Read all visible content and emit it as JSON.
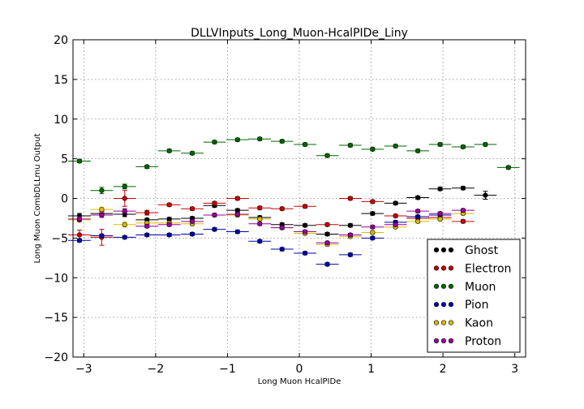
{
  "chart_data": {
    "type": "scatter",
    "title": "DLLVInputs_Long_Muon-HcalPIDe_Liny",
    "xlabel": "Long Muon HcalPIDe",
    "ylabel": "Long Muon CombDLLmu Output",
    "xlim": [
      -3.15,
      3.15
    ],
    "ylim": [
      -20,
      20
    ],
    "x_ticks": [
      -3,
      -2,
      -1,
      0,
      1,
      2,
      3
    ],
    "x_tick_labels": [
      "−3",
      "−2",
      "−1",
      "0",
      "1",
      "2",
      "3"
    ],
    "y_ticks": [
      -20,
      -15,
      -10,
      -5,
      0,
      5,
      10,
      15,
      20
    ],
    "y_tick_labels": [
      "−20",
      "−15",
      "−10",
      "−5",
      "0",
      "5",
      "10",
      "15",
      "20"
    ],
    "grid": true,
    "legend_position": "lower-right",
    "bin_half_width": 0.157,
    "series": [
      {
        "name": "Ghost",
        "color": "#000000",
        "x": [
          -3.06,
          -2.75,
          -2.43,
          -2.12,
          -1.81,
          -1.49,
          -1.18,
          -0.86,
          -0.55,
          -0.24,
          0.08,
          0.39,
          0.71,
          1.02,
          1.34,
          1.65,
          1.96,
          2.28,
          2.59
        ],
        "y": [
          -2.2,
          -1.9,
          -2.0,
          -2.7,
          -2.6,
          -2.5,
          -0.9,
          -1.5,
          -2.4,
          -3.3,
          -3.4,
          -4.5,
          -3.4,
          -1.9,
          -0.6,
          0.1,
          1.2,
          1.3,
          0.4
        ],
        "yerr": [
          0.3,
          0.3,
          0.3,
          0.2,
          0.2,
          0.2,
          0.2,
          0.2,
          0.2,
          0.2,
          0.2,
          0.2,
          0.2,
          0.2,
          0.2,
          0.2,
          0.2,
          0.2,
          0.5
        ]
      },
      {
        "name": "Electron",
        "color": "#cc0000",
        "x": [
          -3.06,
          -2.75,
          -2.43,
          -2.12,
          -1.81,
          -1.49,
          -1.18,
          -0.86,
          -0.55,
          -0.24,
          0.08,
          0.39,
          0.71,
          1.02,
          1.34,
          1.65,
          1.96,
          2.28
        ],
        "y": [
          -4.6,
          -4.9,
          0.0,
          -1.8,
          -0.8,
          -1.3,
          -0.6,
          0.0,
          -1.2,
          -1.3,
          -1.0,
          -3.3,
          0.0,
          -0.4,
          -2.2,
          -2.5,
          -2.4,
          -2.9
        ],
        "yerr": [
          0.6,
          1.0,
          1.0,
          0.3,
          0.2,
          0.2,
          0.2,
          0.2,
          0.2,
          0.2,
          0.2,
          0.2,
          0.2,
          0.2,
          0.2,
          0.2,
          0.2,
          0.2
        ]
      },
      {
        "name": "Muon",
        "color": "#006600",
        "x": [
          -3.06,
          -2.75,
          -2.43,
          -2.12,
          -1.81,
          -1.49,
          -1.18,
          -0.86,
          -0.55,
          -0.24,
          0.08,
          0.39,
          0.71,
          1.02,
          1.34,
          1.65,
          1.96,
          2.28,
          2.59,
          2.91
        ],
        "y": [
          4.7,
          1.0,
          1.5,
          4.0,
          6.0,
          5.7,
          7.1,
          7.4,
          7.5,
          7.2,
          6.8,
          5.4,
          6.7,
          6.2,
          6.6,
          6.0,
          6.8,
          6.5,
          6.8,
          3.9
        ],
        "yerr": [
          0.2,
          0.4,
          0.3,
          0.2,
          0.2,
          0.2,
          0.2,
          0.2,
          0.2,
          0.2,
          0.2,
          0.2,
          0.2,
          0.2,
          0.2,
          0.2,
          0.2,
          0.2,
          0.2,
          0.2
        ]
      },
      {
        "name": "Pion",
        "color": "#0000aa",
        "x": [
          -3.06,
          -2.75,
          -2.43,
          -2.12,
          -1.81,
          -1.49,
          -1.18,
          -0.86,
          -0.55,
          -0.24,
          0.08,
          0.39,
          0.71,
          1.02,
          1.34,
          1.65,
          1.96
        ],
        "y": [
          -5.3,
          -4.7,
          -4.9,
          -4.6,
          -4.6,
          -4.5,
          -3.9,
          -4.2,
          -5.4,
          -6.4,
          -6.9,
          -8.3,
          -7.1,
          -5.0,
          -3.0,
          -2.3,
          -2.1
        ],
        "yerr": [
          0.2,
          0.2,
          0.2,
          0.2,
          0.2,
          0.2,
          0.2,
          0.2,
          0.2,
          0.2,
          0.2,
          0.2,
          0.2,
          0.2,
          0.2,
          0.2,
          0.2
        ]
      },
      {
        "name": "Kaon",
        "color": "#ddbb00",
        "x": [
          -3.06,
          -2.75,
          -2.43,
          -2.12,
          -1.81,
          -1.49,
          -1.18,
          -0.86,
          -0.55,
          -0.24,
          0.08,
          0.39,
          0.71,
          1.02,
          1.34,
          1.65,
          1.96,
          2.28
        ],
        "y": [
          -2.7,
          -1.4,
          -3.3,
          -3.1,
          -3.1,
          -3.2,
          -2.1,
          -2.1,
          -2.6,
          -3.7,
          -4.4,
          -5.8,
          -4.8,
          -4.3,
          -3.6,
          -2.9,
          -2.6,
          -1.9
        ],
        "yerr": [
          0.3,
          0.3,
          0.3,
          0.2,
          0.2,
          0.2,
          0.2,
          0.2,
          0.2,
          0.2,
          0.2,
          0.2,
          0.2,
          0.2,
          0.2,
          0.2,
          0.2,
          0.2
        ]
      },
      {
        "name": "Proton",
        "color": "#990099",
        "x": [
          -3.06,
          -2.75,
          -2.43,
          -2.12,
          -1.81,
          -1.49,
          -1.18,
          -0.86,
          -0.55,
          -0.24,
          0.08,
          0.39,
          0.71,
          1.02,
          1.34,
          1.65,
          1.96,
          2.28
        ],
        "y": [
          -2.6,
          -2.1,
          -1.6,
          -3.5,
          -3.3,
          -2.9,
          -2.1,
          -2.0,
          -3.2,
          -3.7,
          -4.2,
          -5.6,
          -4.6,
          -3.6,
          -3.3,
          -1.6,
          -1.9,
          -1.5
        ],
        "yerr": [
          0.3,
          0.3,
          0.3,
          0.2,
          0.2,
          0.2,
          0.2,
          0.2,
          0.2,
          0.2,
          0.2,
          0.2,
          0.2,
          0.2,
          0.2,
          0.2,
          0.2,
          0.2
        ]
      }
    ]
  }
}
